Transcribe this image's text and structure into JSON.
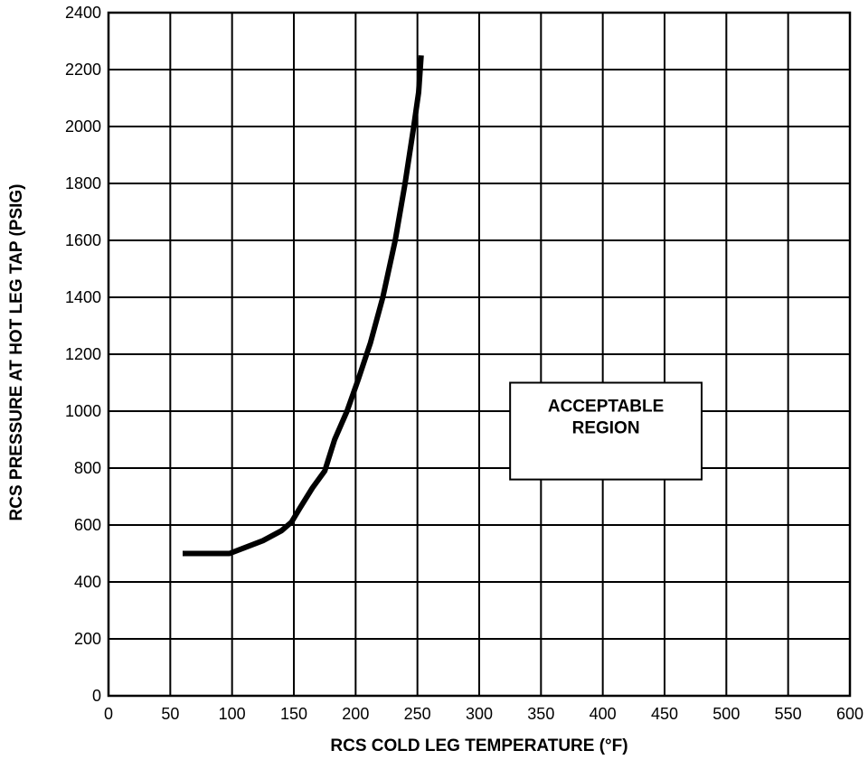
{
  "chart_data": {
    "type": "line",
    "title": "",
    "xlabel": "RCS COLD LEG TEMPERATURE (°F)",
    "ylabel": "RCS PRESSURE AT HOT LEG TAP (PSIG)",
    "xlim": [
      0,
      600
    ],
    "ylim": [
      0,
      2400
    ],
    "x_ticks": [
      0,
      50,
      100,
      150,
      200,
      250,
      300,
      350,
      400,
      450,
      500,
      550,
      600
    ],
    "y_ticks": [
      0,
      200,
      400,
      600,
      800,
      1000,
      1200,
      1400,
      1600,
      1800,
      2000,
      2200,
      2400
    ],
    "grid": true,
    "series": [
      {
        "values": [
          [
            60,
            500
          ],
          [
            98,
            500
          ],
          [
            110,
            520
          ],
          [
            125,
            545
          ],
          [
            140,
            580
          ],
          [
            148,
            610
          ],
          [
            155,
            660
          ],
          [
            165,
            730
          ],
          [
            175,
            790
          ],
          [
            183,
            900
          ],
          [
            193,
            1000
          ],
          [
            202,
            1110
          ],
          [
            212,
            1240
          ],
          [
            222,
            1400
          ],
          [
            232,
            1600
          ],
          [
            240,
            1800
          ],
          [
            247,
            2000
          ],
          [
            251,
            2120
          ],
          [
            253,
            2250
          ]
        ]
      }
    ],
    "annotations": [
      {
        "lines": [
          "ACCEPTABLE",
          "REGION"
        ],
        "x_range": [
          325,
          480
        ],
        "y_range": [
          760,
          1100
        ]
      }
    ]
  }
}
